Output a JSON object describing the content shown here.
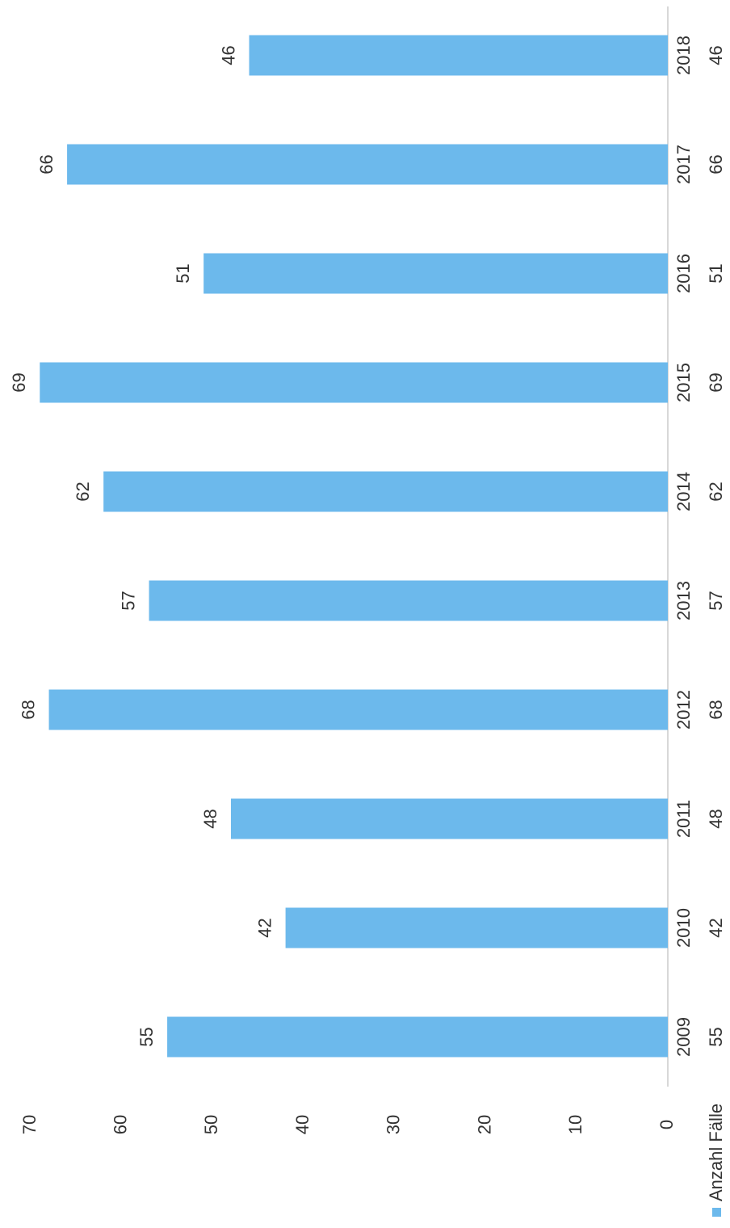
{
  "chart_data": {
    "type": "bar",
    "categories": [
      "2009",
      "2010",
      "2011",
      "2012",
      "2013",
      "2014",
      "2015",
      "2016",
      "2017",
      "2018"
    ],
    "series": [
      {
        "name": "Anzahl Fälle",
        "color": "#6cb9ec",
        "values": [
          55,
          42,
          48,
          68,
          57,
          62,
          69,
          51,
          66,
          46
        ]
      }
    ],
    "ylim": [
      0,
      70
    ],
    "yticks": [
      0,
      10,
      20,
      30,
      40,
      50,
      60,
      70
    ],
    "grid": false,
    "legend": "bottom",
    "data_table": true
  }
}
